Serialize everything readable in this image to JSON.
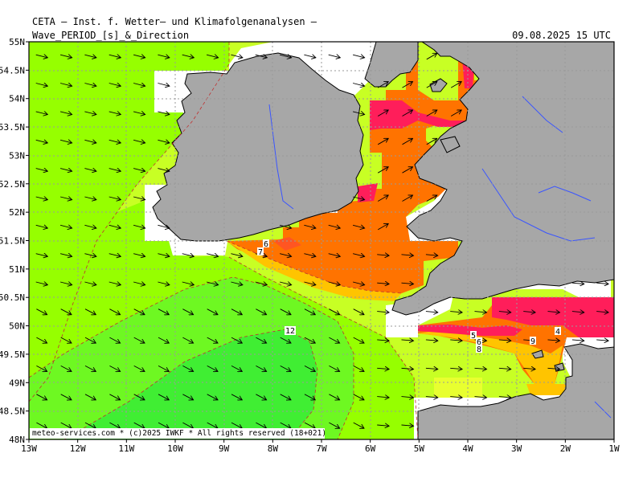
{
  "header": {
    "org": "CETA — Inst. f. Wetter— und Klimafolgenanalysen —",
    "product": "Wave_PERIOD_[s]_&_Direction",
    "valid_time": "09.08.2025 15 UTC"
  },
  "footer": {
    "credit": "meteo-services.com * (c)2025 IWKF * All rights reserved (18+021)"
  },
  "axes": {
    "lat_labels": [
      "55N",
      "54.5N",
      "54N",
      "53.5N",
      "53N",
      "52.5N",
      "52N",
      "51.5N",
      "51N",
      "50.5N",
      "50N",
      "49.5N",
      "49N",
      "48.5N",
      "48N"
    ],
    "lon_labels": [
      "13W",
      "12W",
      "11W",
      "10W",
      "9W",
      "8W",
      "7W",
      "6W",
      "5W",
      "4W",
      "3W",
      "2W",
      "1W"
    ]
  },
  "contour_labels": [
    "12",
    "6",
    "7",
    "5",
    "6",
    "8",
    "4",
    "9"
  ],
  "colors": {
    "land": "#a7a7a7",
    "rivers": "#3a55ff",
    "period_12_plus": "#40ee33",
    "period_11": "#6ef822",
    "period_10": "#96ff00",
    "period_9": "#c8ff24",
    "period_8": "#e8ff30",
    "period_7": "#ffc400",
    "period_6": "#ff7300",
    "period_5": "#ff5522",
    "period_4": "#ff1e5a",
    "no_data": "#ffffff"
  }
}
